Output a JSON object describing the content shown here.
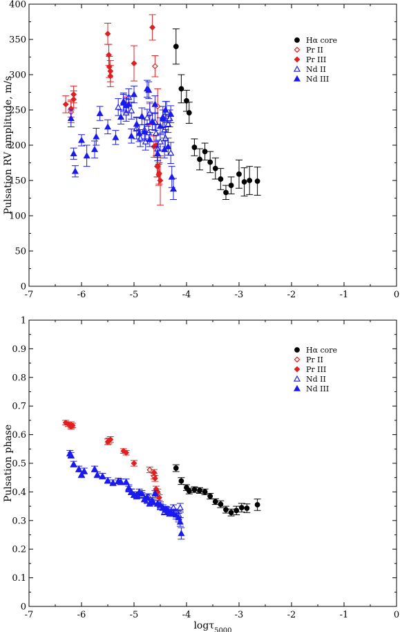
{
  "chart_data": [
    {
      "type": "scatter",
      "ylabel": "Pulsation RV amplitude, m/s",
      "xlabel": "",
      "xlim": [
        -7,
        0
      ],
      "ylim": [
        0,
        400
      ],
      "xticks": [
        -7,
        -6,
        -5,
        -4,
        -3,
        -2,
        -1,
        0
      ],
      "yticks": [
        0,
        50,
        100,
        150,
        200,
        250,
        300,
        350,
        400
      ],
      "legend_position": "top-right",
      "series": [
        {
          "name": "Hα core",
          "marker": "circle",
          "filled": true,
          "color": "#000000",
          "x": [
            -4.2,
            -4.1,
            -4.0,
            -3.95,
            -3.85,
            -3.75,
            -3.65,
            -3.55,
            -3.45,
            -3.35,
            -3.25,
            -3.15,
            -3.0,
            -2.9,
            -2.8,
            -2.65
          ],
          "y": [
            340,
            280,
            263,
            246,
            197,
            180,
            191,
            176,
            167,
            152,
            133,
            143,
            159,
            148,
            150,
            149
          ],
          "err": [
            25,
            20,
            15,
            15,
            12,
            15,
            12,
            15,
            15,
            15,
            10,
            12,
            20,
            20,
            20,
            20
          ]
        },
        {
          "name": "Pr II",
          "marker": "diamond",
          "filled": false,
          "color": "#e02020",
          "x": [
            -6.2,
            -5.15,
            -4.7,
            -4.6,
            -4.55
          ],
          "y": [
            247,
            258,
            244,
            312,
            255
          ],
          "err": [
            15,
            10,
            15,
            15,
            25
          ]
        },
        {
          "name": "Pr III",
          "marker": "diamond",
          "filled": true,
          "color": "#e02020",
          "x": [
            -6.3,
            -6.2,
            -6.15,
            -6.15,
            -5.5,
            -5.48,
            -5.47,
            -5.45,
            -5.45,
            -5.0,
            -4.65,
            -4.62,
            -4.58,
            -4.56,
            -4.55,
            -4.53,
            -4.52,
            -4.5
          ],
          "y": [
            258,
            252,
            265,
            272,
            358,
            328,
            311,
            305,
            298,
            316,
            367,
            198,
            200,
            170,
            170,
            158,
            160,
            150
          ],
          "err": [
            12,
            12,
            12,
            12,
            15,
            15,
            15,
            15,
            15,
            25,
            18,
            15,
            15,
            15,
            15,
            15,
            15,
            35
          ]
        },
        {
          "name": "Nd II",
          "marker": "triangle",
          "filled": false,
          "color": "#1a1aee",
          "x": [
            -5.3,
            -5.2,
            -5.15,
            -5.1,
            -5.05,
            -4.95,
            -4.88,
            -4.8,
            -4.78,
            -4.75,
            -4.72,
            -4.7,
            -4.6,
            -4.58,
            -4.55,
            -4.5,
            -4.45,
            -4.42,
            -4.4,
            -4.38,
            -4.35,
            -4.32,
            -4.3
          ],
          "y": [
            254,
            262,
            246,
            268,
            249,
            224,
            210,
            222,
            205,
            239,
            218,
            246,
            233,
            217,
            195,
            205,
            240,
            222,
            210,
            247,
            230,
            238,
            189
          ],
          "err": [
            12,
            12,
            12,
            12,
            12,
            15,
            12,
            15,
            12,
            12,
            12,
            15,
            12,
            12,
            12,
            12,
            15,
            12,
            12,
            15,
            12,
            12,
            15
          ]
        },
        {
          "name": "Nd III",
          "marker": "triangle",
          "filled": true,
          "color": "#1a1aee",
          "x": [
            -6.2,
            -6.15,
            -6.12,
            -6.0,
            -5.9,
            -5.75,
            -5.72,
            -5.65,
            -5.5,
            -5.35,
            -5.25,
            -5.2,
            -5.15,
            -5.1,
            -5.05,
            -5.0,
            -4.95,
            -4.9,
            -4.85,
            -4.8,
            -4.75,
            -4.72,
            -4.7,
            -4.65,
            -4.6,
            -4.55,
            -4.5,
            -4.45,
            -4.42,
            -4.4,
            -4.35,
            -4.3,
            -4.28,
            -4.25
          ],
          "y": [
            238,
            188,
            163,
            207,
            185,
            194,
            212,
            245,
            226,
            211,
            240,
            260,
            256,
            258,
            213,
            272,
            230,
            217,
            241,
            219,
            280,
            278,
            208,
            234,
            258,
            188,
            227,
            238,
            194,
            250,
            198,
            244,
            155,
            138
          ],
          "err": [
            12,
            8,
            8,
            8,
            15,
            12,
            12,
            10,
            10,
            10,
            10,
            12,
            10,
            12,
            10,
            12,
            10,
            12,
            12,
            10,
            12,
            12,
            10,
            12,
            12,
            10,
            12,
            12,
            12,
            12,
            12,
            12,
            15,
            15
          ]
        }
      ]
    },
    {
      "type": "scatter",
      "ylabel": "Pulsation phase",
      "xlabel": "logτ5000",
      "xlim": [
        -7,
        0
      ],
      "ylim": [
        0,
        1
      ],
      "xticks": [
        -7,
        -6,
        -5,
        -4,
        -3,
        -2,
        -1,
        0
      ],
      "yticks": [
        0,
        0.1,
        0.2,
        0.3,
        0.4,
        0.5,
        0.6,
        0.7,
        0.8,
        0.9,
        1
      ],
      "legend_position": "top-right",
      "series": [
        {
          "name": "Hα core",
          "marker": "circle",
          "filled": true,
          "color": "#000000",
          "x": [
            -4.2,
            -4.1,
            -4.0,
            -3.95,
            -3.85,
            -3.75,
            -3.65,
            -3.55,
            -3.45,
            -3.35,
            -3.25,
            -3.15,
            -3.05,
            -2.95,
            -2.85,
            -2.65
          ],
          "y": [
            0.483,
            0.438,
            0.415,
            0.403,
            0.408,
            0.405,
            0.4,
            0.385,
            0.366,
            0.357,
            0.338,
            0.328,
            0.335,
            0.345,
            0.343,
            0.355
          ],
          "err": [
            0.012,
            0.012,
            0.01,
            0.01,
            0.01,
            0.01,
            0.01,
            0.01,
            0.01,
            0.012,
            0.012,
            0.012,
            0.015,
            0.015,
            0.015,
            0.02
          ]
        },
        {
          "name": "Pr II",
          "marker": "diamond",
          "filled": false,
          "color": "#e02020",
          "x": [
            -6.2,
            -5.48,
            -4.7,
            -4.62,
            -4.55
          ],
          "y": [
            0.635,
            0.578,
            0.477,
            0.455,
            0.385
          ],
          "err": [
            0.01,
            0.01,
            0.01,
            0.01,
            0.01
          ]
        },
        {
          "name": "Pr III",
          "marker": "diamond",
          "filled": true,
          "color": "#e02020",
          "x": [
            -6.3,
            -6.25,
            -6.2,
            -6.17,
            -5.5,
            -5.45,
            -5.2,
            -5.15,
            -5.0,
            -4.62,
            -4.6,
            -4.58,
            -4.55,
            -4.52
          ],
          "y": [
            0.642,
            0.637,
            0.628,
            0.632,
            0.575,
            0.583,
            0.543,
            0.537,
            0.5,
            0.468,
            0.447,
            0.41,
            0.4,
            0.38
          ],
          "err": [
            0.008,
            0.008,
            0.008,
            0.008,
            0.01,
            0.01,
            0.008,
            0.008,
            0.01,
            0.01,
            0.01,
            0.01,
            0.01,
            0.01
          ]
        },
        {
          "name": "Nd II",
          "marker": "triangle",
          "filled": false,
          "color": "#1a1aee",
          "x": [
            -5.1,
            -5.05,
            -4.95,
            -4.85,
            -4.75,
            -4.72,
            -4.65,
            -4.55,
            -4.5,
            -4.42,
            -4.38,
            -4.32,
            -4.25,
            -4.2,
            -4.15,
            -4.12
          ],
          "y": [
            0.41,
            0.4,
            0.39,
            0.388,
            0.37,
            0.383,
            0.365,
            0.36,
            0.348,
            0.33,
            0.338,
            0.325,
            0.345,
            0.33,
            0.32,
            0.345
          ],
          "err": [
            0.01,
            0.01,
            0.01,
            0.01,
            0.01,
            0.01,
            0.01,
            0.01,
            0.01,
            0.01,
            0.01,
            0.01,
            0.01,
            0.01,
            0.015,
            0.015
          ]
        },
        {
          "name": "Nd III",
          "marker": "triangle",
          "filled": true,
          "color": "#1a1aee",
          "x": [
            -6.22,
            -6.2,
            -6.15,
            -6.05,
            -6.0,
            -5.95,
            -5.75,
            -5.7,
            -5.6,
            -5.5,
            -5.4,
            -5.3,
            -5.25,
            -5.15,
            -5.1,
            -5.05,
            -5.0,
            -4.95,
            -4.9,
            -4.85,
            -4.8,
            -4.75,
            -4.7,
            -4.65,
            -4.6,
            -4.55,
            -4.5,
            -4.45,
            -4.4,
            -4.35,
            -4.3,
            -4.25,
            -4.2,
            -4.15,
            -4.12,
            -4.1
          ],
          "y": [
            0.535,
            0.528,
            0.497,
            0.48,
            0.46,
            0.473,
            0.48,
            0.46,
            0.455,
            0.44,
            0.432,
            0.438,
            0.435,
            0.435,
            0.415,
            0.4,
            0.39,
            0.385,
            0.4,
            0.395,
            0.375,
            0.383,
            0.36,
            0.37,
            0.395,
            0.36,
            0.355,
            0.345,
            0.34,
            0.335,
            0.33,
            0.325,
            0.32,
            0.31,
            0.295,
            0.255
          ],
          "err": [
            0.01,
            0.01,
            0.01,
            0.01,
            0.01,
            0.01,
            0.01,
            0.01,
            0.01,
            0.01,
            0.01,
            0.01,
            0.01,
            0.01,
            0.01,
            0.01,
            0.01,
            0.01,
            0.01,
            0.01,
            0.01,
            0.01,
            0.01,
            0.01,
            0.01,
            0.01,
            0.01,
            0.01,
            0.01,
            0.01,
            0.01,
            0.01,
            0.015,
            0.015,
            0.015,
            0.02
          ]
        }
      ]
    }
  ]
}
